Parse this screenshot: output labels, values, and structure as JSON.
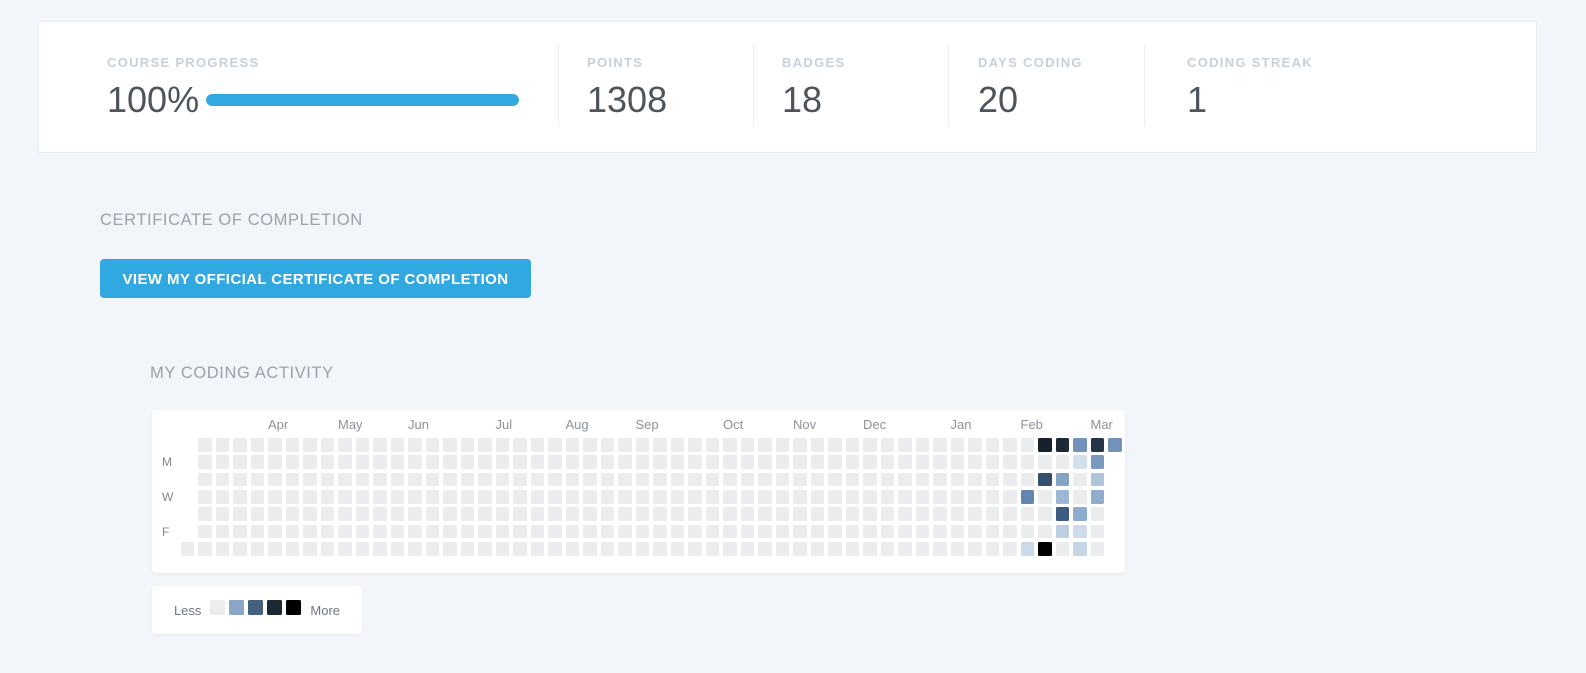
{
  "stats": {
    "course_progress": {
      "label": "COURSE PROGRESS",
      "value": "100%",
      "progress_percent": 100
    },
    "points": {
      "label": "POINTS",
      "value": "1308"
    },
    "badges": {
      "label": "BADGES",
      "value": "18"
    },
    "days_coding": {
      "label": "DAYS CODING",
      "value": "20"
    },
    "coding_streak": {
      "label": "CODING STREAK",
      "value": "1"
    }
  },
  "certificate": {
    "heading": "CERTIFICATE OF COMPLETION",
    "button_label": "VIEW MY OFFICIAL CERTIFICATE OF COMPLETION"
  },
  "activity": {
    "heading": "MY CODING ACTIVITY",
    "months": [
      {
        "label": "Apr",
        "col": 5
      },
      {
        "label": "May",
        "col": 9
      },
      {
        "label": "Jun",
        "col": 13
      },
      {
        "label": "Jul",
        "col": 18
      },
      {
        "label": "Aug",
        "col": 22
      },
      {
        "label": "Sep",
        "col": 26
      },
      {
        "label": "Oct",
        "col": 31
      },
      {
        "label": "Nov",
        "col": 35
      },
      {
        "label": "Dec",
        "col": 39
      },
      {
        "label": "Jan",
        "col": 44
      },
      {
        "label": "Feb",
        "col": 48
      },
      {
        "label": "Mar",
        "col": 52
      }
    ],
    "day_labels": [
      {
        "label": "M",
        "row": 1
      },
      {
        "label": "W",
        "row": 3
      },
      {
        "label": "F",
        "row": 5
      }
    ],
    "grid": {
      "cols": 54,
      "rows": 7,
      "first_col_rows": [
        6
      ],
      "last_col_rows": [
        0
      ],
      "empty_color": "#ebecee",
      "colored_cells": [
        {
          "col": 48,
          "row": 3,
          "color": "#5f87b1"
        },
        {
          "col": 48,
          "row": 6,
          "color": "#ccd9e8"
        },
        {
          "col": 49,
          "row": 0,
          "color": "#16212d"
        },
        {
          "col": 49,
          "row": 2,
          "color": "#34506f"
        },
        {
          "col": 49,
          "row": 6,
          "color": "#000000"
        },
        {
          "col": 50,
          "row": 0,
          "color": "#1d2936"
        },
        {
          "col": 50,
          "row": 2,
          "color": "#85a3c6"
        },
        {
          "col": 50,
          "row": 3,
          "color": "#9cb6d3"
        },
        {
          "col": 50,
          "row": 4,
          "color": "#3d5c81"
        },
        {
          "col": 50,
          "row": 5,
          "color": "#bccee2"
        },
        {
          "col": 51,
          "row": 0,
          "color": "#7292ba"
        },
        {
          "col": 51,
          "row": 1,
          "color": "#d3dfeb"
        },
        {
          "col": 51,
          "row": 4,
          "color": "#8fabce"
        },
        {
          "col": 51,
          "row": 5,
          "color": "#d0dcea"
        },
        {
          "col": 51,
          "row": 6,
          "color": "#c6d5e6"
        },
        {
          "col": 52,
          "row": 0,
          "color": "#253547"
        },
        {
          "col": 52,
          "row": 1,
          "color": "#7999c0"
        },
        {
          "col": 52,
          "row": 2,
          "color": "#aec4db"
        },
        {
          "col": 52,
          "row": 3,
          "color": "#8fabce"
        },
        {
          "col": 53,
          "row": 0,
          "color": "#7292ba"
        }
      ]
    },
    "legend": {
      "less_label": "Less",
      "more_label": "More",
      "colors": [
        "#ededed",
        "#8aa6c6",
        "#44617f",
        "#1c2935",
        "#000000"
      ]
    }
  },
  "colors": {
    "accent_blue": "#32a8e0",
    "page_background": "#f2f5f9",
    "stat_label_gray": "#c7d0d9",
    "stat_value_gray": "#4d545c",
    "heading_gray": "#99a2ab"
  }
}
